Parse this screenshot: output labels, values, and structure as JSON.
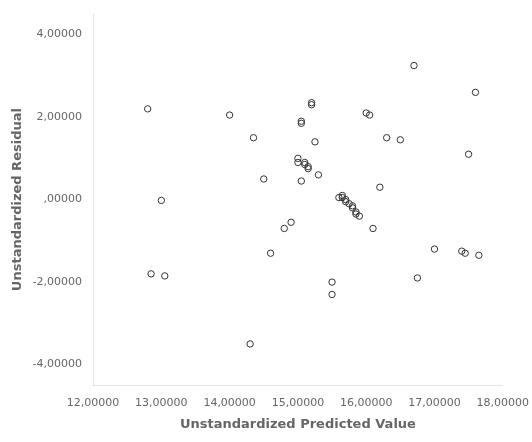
{
  "chart_data": {
    "type": "scatter",
    "x": [
      12.8,
      12.85,
      13.0,
      13.05,
      14.0,
      14.3,
      14.35,
      14.5,
      14.6,
      14.8,
      14.9,
      15.0,
      15.0,
      15.05,
      15.05,
      15.05,
      15.1,
      15.1,
      15.15,
      15.15,
      15.2,
      15.2,
      15.25,
      15.3,
      15.5,
      15.5,
      15.6,
      15.65,
      15.65,
      15.7,
      15.7,
      15.75,
      15.8,
      15.8,
      15.85,
      15.85,
      15.9,
      16.0,
      16.05,
      16.1,
      16.2,
      16.3,
      16.5,
      16.7,
      16.75,
      17.0,
      17.4,
      17.45,
      17.5,
      17.6,
      17.65
    ],
    "values": [
      2.2,
      -1.8,
      -0.02,
      -1.85,
      2.05,
      -3.5,
      1.5,
      0.5,
      -1.3,
      -0.7,
      -0.55,
      1.0,
      0.9,
      1.9,
      1.85,
      0.45,
      0.9,
      0.85,
      0.8,
      0.75,
      2.35,
      2.3,
      1.4,
      0.6,
      -2.3,
      -2.0,
      0.05,
      0.1,
      0.05,
      0.0,
      -0.05,
      -0.1,
      -0.15,
      -0.2,
      -0.3,
      -0.35,
      -0.4,
      2.1,
      2.05,
      -0.7,
      0.3,
      1.5,
      1.45,
      3.25,
      -1.9,
      -1.2,
      -1.25,
      -1.3,
      1.1,
      2.6,
      -1.35
    ],
    "xlabel": "Unstandardized Predicted Value",
    "ylabel": "Unstandardized Residual",
    "xlim": [
      12.0,
      18.0
    ],
    "ylim": [
      -4.5,
      4.5
    ],
    "xticks": [
      {
        "value": 12.0,
        "label": "12,00000"
      },
      {
        "value": 13.0,
        "label": "13,00000"
      },
      {
        "value": 14.0,
        "label": "14,00000"
      },
      {
        "value": 15.0,
        "label": "15,00000"
      },
      {
        "value": 16.0,
        "label": "16,00000"
      },
      {
        "value": 17.0,
        "label": "17,00000"
      },
      {
        "value": 18.0,
        "label": "18,00000"
      }
    ],
    "yticks": [
      {
        "value": -4.0,
        "label": "-4,00000"
      },
      {
        "value": -2.0,
        "label": "-2,00000"
      },
      {
        "value": 0.0,
        "label": ",00000"
      },
      {
        "value": 2.0,
        "label": "2,00000"
      },
      {
        "value": 4.0,
        "label": "4,00000"
      }
    ],
    "color": "#333333",
    "marker": "circle",
    "grid": false
  }
}
